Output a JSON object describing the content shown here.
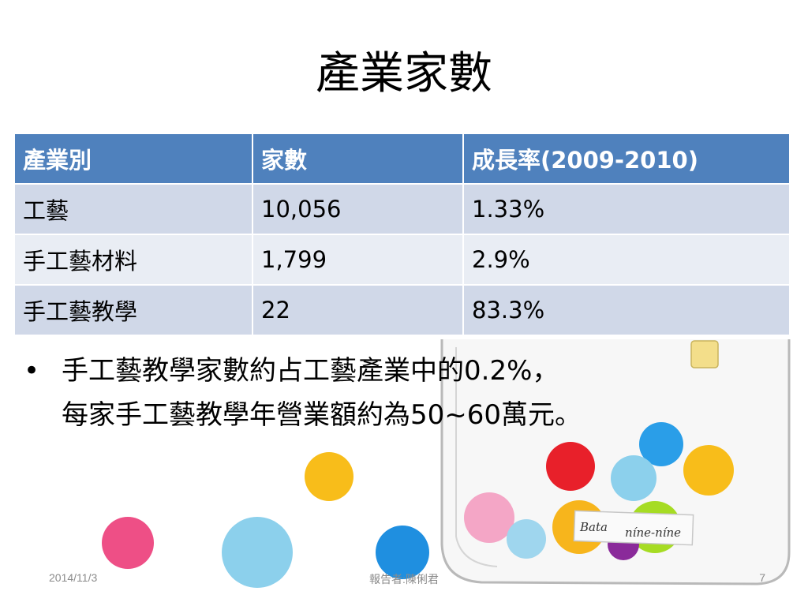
{
  "slide": {
    "title": "產業家數",
    "table": {
      "headers": [
        "產業別",
        "家數",
        "成長率(2009-2010)"
      ],
      "rows": [
        [
          "工藝",
          "10,056",
          "1.33%"
        ],
        [
          "手工藝材料",
          "1,799",
          "2.9%"
        ],
        [
          "手工藝教學",
          "22",
          "83.3%"
        ]
      ]
    },
    "bullet": {
      "marker": "•",
      "line1": "手工藝教學家數約占工藝產業中的0.2%，",
      "line2": "每家手工藝教學年營業額約為50~60萬元。"
    },
    "decoration": {
      "label_left": "Bata",
      "label_right": "níne-níne"
    },
    "footer": {
      "date": "2014/11/3",
      "presenter": "報告者:陳俐君",
      "page": "7"
    }
  },
  "colors": {
    "header_bg": "#4f81bd",
    "row_odd_bg": "#d0d8e8",
    "row_even_bg": "#e9edf4",
    "footer_text": "#8b8b8b"
  }
}
